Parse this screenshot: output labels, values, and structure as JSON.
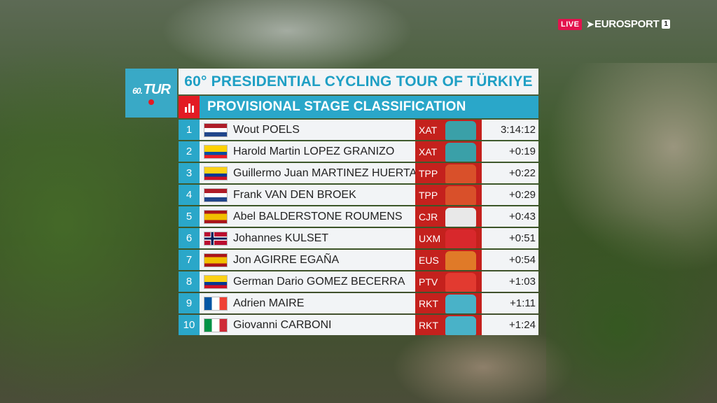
{
  "broadcast": {
    "live_label": "LIVE",
    "channel_name": "EUROSPORT",
    "channel_number": "1"
  },
  "event_logo": {
    "prefix": "60.",
    "mark": "TUR"
  },
  "header": {
    "title": "60° PRESIDENTIAL CYCLING TOUR OF TÜRKIYE",
    "subtitle": "PROVISIONAL STAGE CLASSIFICATION",
    "subtitle_icon": "bar-chart-icon"
  },
  "colors": {
    "accent_blue": "#2aa7c9",
    "accent_red": "#c4211d"
  },
  "standings": [
    {
      "pos": "1",
      "flag": "netherlands-flag",
      "rider": "Wout POELS",
      "team": "XAT",
      "jersey": "#3aa0a8",
      "time": "3:14:12"
    },
    {
      "pos": "2",
      "flag": "ecuador-flag",
      "rider": "Harold Martin LOPEZ GRANIZO",
      "team": "XAT",
      "jersey": "#3aa0a8",
      "time": "+0:19"
    },
    {
      "pos": "3",
      "flag": "colombia-flag",
      "rider": "Guillermo Juan MARTINEZ HUERTAS",
      "team": "TPP",
      "jersey": "#d9502a",
      "time": "+0:22"
    },
    {
      "pos": "4",
      "flag": "netherlands-flag",
      "rider": "Frank VAN DEN BROEK",
      "team": "TPP",
      "jersey": "#d9502a",
      "time": "+0:29"
    },
    {
      "pos": "5",
      "flag": "spain-flag",
      "rider": "Abel BALDERSTONE ROUMENS",
      "team": "CJR",
      "jersey": "#e8e8e8",
      "time": "+0:43"
    },
    {
      "pos": "6",
      "flag": "norway-flag",
      "rider": "Johannes KULSET",
      "team": "UXM",
      "jersey": "#d8282c",
      "time": "+0:51"
    },
    {
      "pos": "7",
      "flag": "spain-flag",
      "rider": "Jon AGIRRE EGAÑA",
      "team": "EUS",
      "jersey": "#e07a28",
      "time": "+0:54"
    },
    {
      "pos": "8",
      "flag": "colombia-flag",
      "rider": "German Dario GOMEZ BECERRA",
      "team": "PTV",
      "jersey": "#e23a30",
      "time": "+1:03"
    },
    {
      "pos": "9",
      "flag": "france-flag",
      "rider": "Adrien MAIRE",
      "team": "RKT",
      "jersey": "#49b2c8",
      "time": "+1:11"
    },
    {
      "pos": "10",
      "flag": "italy-flag",
      "rider": "Giovanni CARBONI",
      "team": "RKT",
      "jersey": "#49b2c8",
      "time": "+1:24"
    }
  ]
}
